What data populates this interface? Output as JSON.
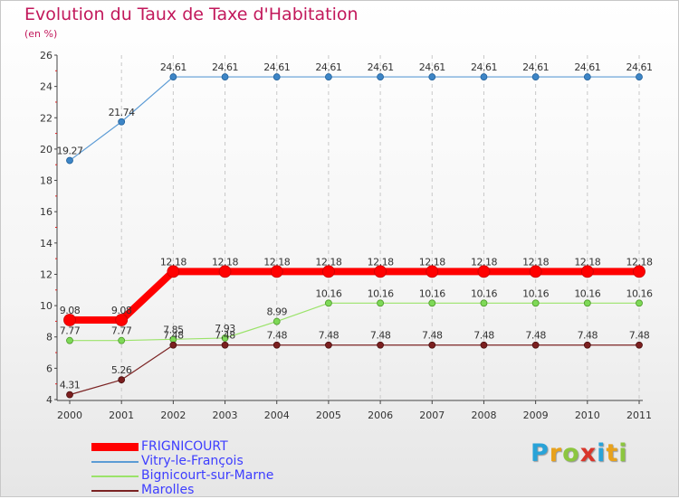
{
  "chart_data": {
    "type": "line",
    "title": "Evolution du Taux de Taxe d'Habitation",
    "subtitle": "(en %)",
    "x": [
      "2000",
      "2001",
      "2002",
      "2003",
      "2004",
      "2005",
      "2006",
      "2007",
      "2008",
      "2009",
      "2010",
      "2011"
    ],
    "ylim": [
      4,
      26
    ],
    "yticks": [
      4,
      6,
      8,
      10,
      12,
      14,
      16,
      18,
      20,
      22,
      24,
      26
    ],
    "grid": "vertical dashed lines",
    "legend_position": "bottom-left",
    "series": [
      {
        "name": "FRIGNICOURT",
        "color": "#ff0000",
        "values": [
          9.08,
          9.08,
          12.18,
          12.18,
          12.18,
          12.18,
          12.18,
          12.18,
          12.18,
          12.18,
          12.18,
          12.18
        ],
        "labels": [
          "9.08",
          "9.08",
          "12.18",
          "12.18",
          "12.18",
          "12.18",
          "12.18",
          "12.18",
          "12.18",
          "12.18",
          "12.18",
          "12.18"
        ]
      },
      {
        "name": "Vitry-le-François",
        "color": "#5b9bd5",
        "values": [
          19.27,
          21.74,
          24.61,
          24.61,
          24.61,
          24.61,
          24.61,
          24.61,
          24.61,
          24.61,
          24.61,
          24.61
        ],
        "labels": [
          "19.27",
          "21.74",
          "24.61",
          "24.61",
          "24.61",
          "24.61",
          "24.61",
          "24.61",
          "24.61",
          "24.61",
          "24.61",
          "24.61"
        ]
      },
      {
        "name": "Bignicourt-sur-Marne",
        "color": "#9be36a",
        "values": [
          7.77,
          7.77,
          7.85,
          7.93,
          8.99,
          10.16,
          10.16,
          10.16,
          10.16,
          10.16,
          10.16,
          10.16
        ],
        "labels": [
          "7.77",
          "7.77",
          "7.85",
          "7.93",
          "8.99",
          "10.16",
          "10.16",
          "10.16",
          "10.16",
          "10.16",
          "10.16",
          "10.16"
        ]
      },
      {
        "name": "Marolles",
        "color": "#7b2323",
        "values": [
          4.31,
          5.26,
          7.48,
          7.48,
          7.48,
          7.48,
          7.48,
          7.48,
          7.48,
          7.48,
          7.48,
          7.48
        ],
        "labels": [
          "4.31",
          "5.26",
          "7.48",
          "7.48",
          "7.48",
          "7.48",
          "7.48",
          "7.48",
          "7.48",
          "7.48",
          "7.48",
          "7.48"
        ]
      }
    ]
  },
  "legend": {
    "items": [
      "FRIGNICOURT",
      "Vitry-le-François",
      "Bignicourt-sur-Marne",
      "Marolles"
    ]
  },
  "logo": {
    "letters": [
      "P",
      "r",
      "o",
      "x",
      "i",
      "t",
      "i"
    ],
    "colors": [
      "#29a3d8",
      "#e8a21c",
      "#8cc63f",
      "#d9362b",
      "#29a3d8",
      "#e8a21c",
      "#8cc63f"
    ]
  }
}
